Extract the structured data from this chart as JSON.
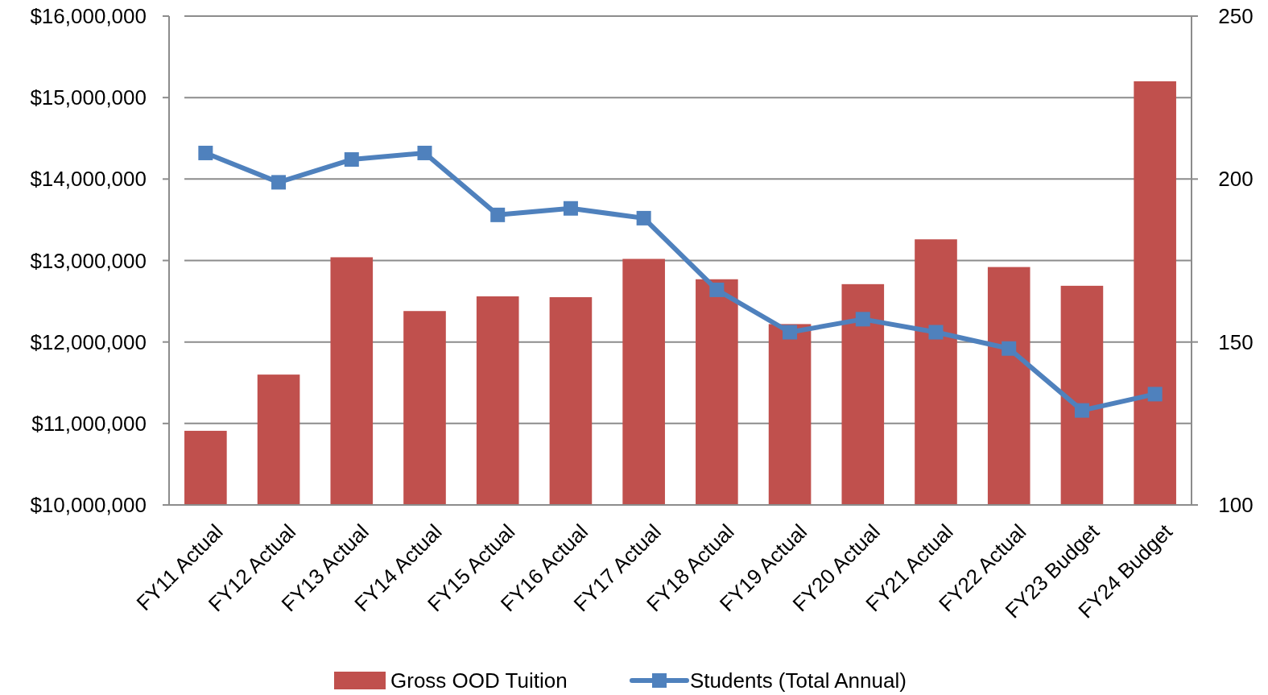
{
  "chart_data": {
    "type": "bar",
    "categories": [
      "FY11 Actual",
      "FY12 Actual",
      "FY13 Actual",
      "FY14 Actual",
      "FY15 Actual",
      "FY16 Actual",
      "FY17 Actual",
      "FY18 Actual",
      "FY19 Actual",
      "FY20 Actual",
      "FY21 Actual",
      "FY22 Actual",
      "FY23 Budget",
      "FY24 Budget"
    ],
    "series": [
      {
        "name": "Gross OOD Tuition",
        "color": "#c0504d",
        "values": [
          10910000,
          11600000,
          13040000,
          12380000,
          12560000,
          12550000,
          13020000,
          12770000,
          12220000,
          12710000,
          13260000,
          12920000,
          12690000,
          15200000
        ]
      },
      {
        "name": "Students (Total Annual)",
        "type": "line",
        "axis": "y2",
        "color": "#4f81bd",
        "values": [
          208,
          199,
          206,
          208,
          189,
          191,
          188,
          166,
          153,
          157,
          153,
          148,
          129,
          134
        ]
      }
    ],
    "ylim": [
      10000000,
      16000000
    ],
    "yticks": [
      {
        "value": 10000000,
        "label": "$10,000,000"
      },
      {
        "value": 11000000,
        "label": "$11,000,000"
      },
      {
        "value": 12000000,
        "label": "$12,000,000"
      },
      {
        "value": 13000000,
        "label": "$13,000,000"
      },
      {
        "value": 14000000,
        "label": "$14,000,000"
      },
      {
        "value": 15000000,
        "label": "$15,000,000"
      },
      {
        "value": 16000000,
        "label": "$16,000,000"
      }
    ],
    "y2lim": [
      100,
      250
    ],
    "y2ticks": [
      100,
      150,
      200,
      250
    ],
    "grid": "y",
    "legend": "bottom",
    "marker": "square",
    "line_style": "solid"
  }
}
